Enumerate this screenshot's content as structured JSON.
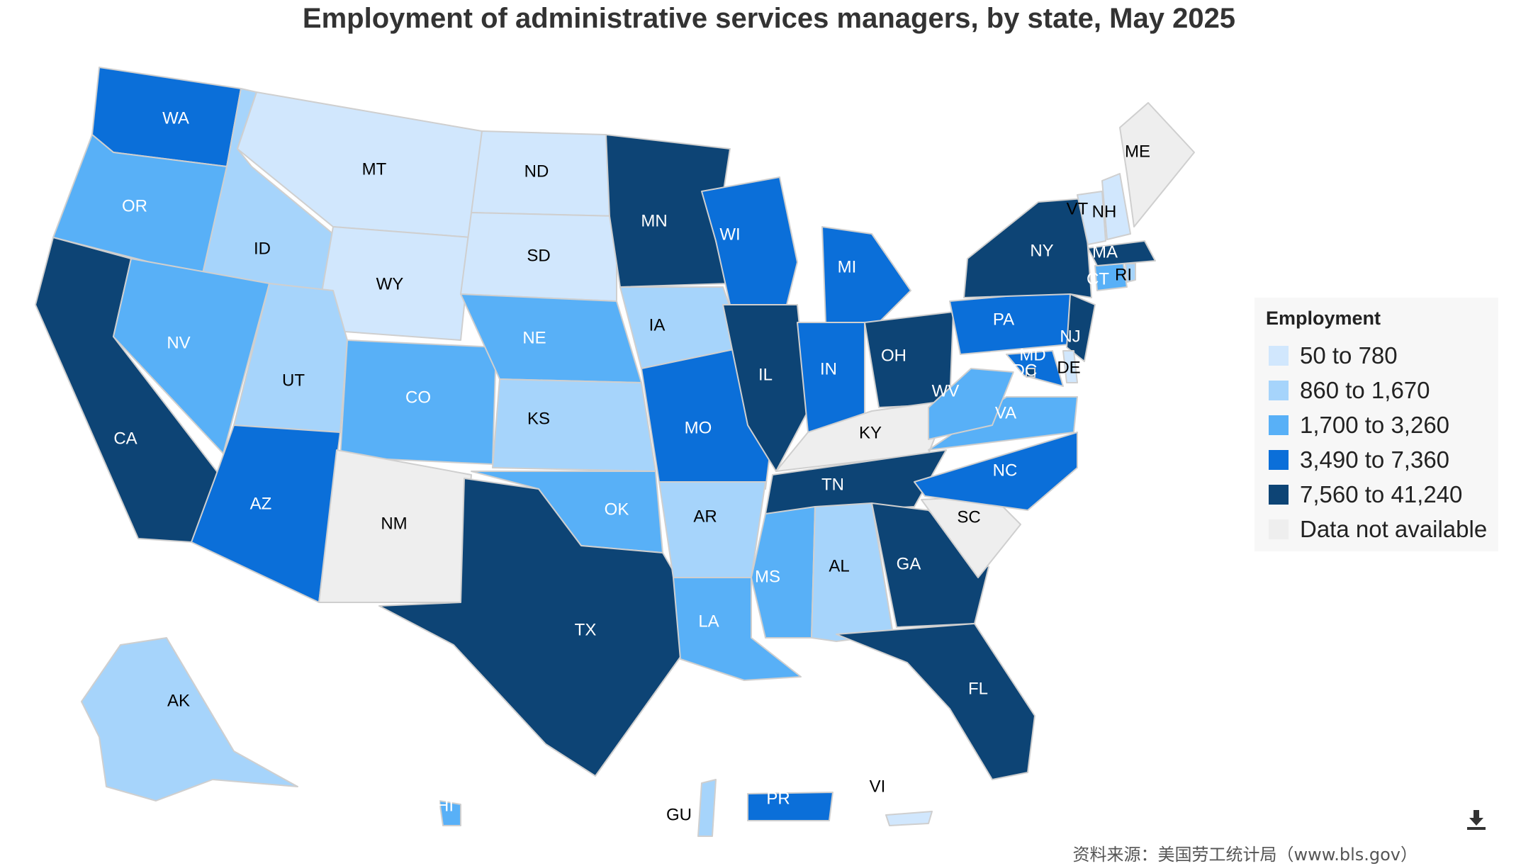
{
  "title": "Employment of administrative services managers, by state, May 2025",
  "source": "资料来源：美国劳工统计局（www.bls.gov）",
  "legend": {
    "title": "Employment",
    "items": [
      {
        "label": "50 to 780",
        "color": "#d1e7fd",
        "text_color": "#000000"
      },
      {
        "label": "860 to 1,670",
        "color": "#a6d4fb",
        "text_color": "#000000"
      },
      {
        "label": "1,700 to 3,260",
        "color": "#58b0f7",
        "text_color": "#ffffff"
      },
      {
        "label": "3,490 to 7,360",
        "color": "#0b6fd9",
        "text_color": "#ffffff"
      },
      {
        "label": "7,560 to 41,240",
        "color": "#0d4475",
        "text_color": "#ffffff"
      },
      {
        "label": "Data not available",
        "color": "#eeeeee",
        "text_color": "#000000"
      }
    ]
  },
  "states": [
    {
      "code": "WA",
      "bin": 3
    },
    {
      "code": "OR",
      "bin": 2
    },
    {
      "code": "CA",
      "bin": 4
    },
    {
      "code": "ID",
      "bin": 1
    },
    {
      "code": "NV",
      "bin": 2
    },
    {
      "code": "MT",
      "bin": 0
    },
    {
      "code": "WY",
      "bin": 0
    },
    {
      "code": "UT",
      "bin": 1
    },
    {
      "code": "AZ",
      "bin": 3
    },
    {
      "code": "CO",
      "bin": 2
    },
    {
      "code": "NM",
      "bin": 5
    },
    {
      "code": "ND",
      "bin": 0
    },
    {
      "code": "SD",
      "bin": 0
    },
    {
      "code": "NE",
      "bin": 2
    },
    {
      "code": "KS",
      "bin": 1
    },
    {
      "code": "OK",
      "bin": 2
    },
    {
      "code": "TX",
      "bin": 4
    },
    {
      "code": "MN",
      "bin": 4
    },
    {
      "code": "IA",
      "bin": 1
    },
    {
      "code": "MO",
      "bin": 3
    },
    {
      "code": "AR",
      "bin": 1
    },
    {
      "code": "LA",
      "bin": 2
    },
    {
      "code": "WI",
      "bin": 3
    },
    {
      "code": "IL",
      "bin": 4
    },
    {
      "code": "MI",
      "bin": 3
    },
    {
      "code": "IN",
      "bin": 3
    },
    {
      "code": "OH",
      "bin": 4
    },
    {
      "code": "KY",
      "bin": 5
    },
    {
      "code": "TN",
      "bin": 4
    },
    {
      "code": "MS",
      "bin": 2
    },
    {
      "code": "AL",
      "bin": 1
    },
    {
      "code": "GA",
      "bin": 4
    },
    {
      "code": "FL",
      "bin": 4
    },
    {
      "code": "SC",
      "bin": 5
    },
    {
      "code": "NC",
      "bin": 3
    },
    {
      "code": "VA",
      "bin": 2
    },
    {
      "code": "WV",
      "bin": 2
    },
    {
      "code": "PA",
      "bin": 3
    },
    {
      "code": "NY",
      "bin": 4
    },
    {
      "code": "NJ",
      "bin": 4
    },
    {
      "code": "MD",
      "bin": 3
    },
    {
      "code": "DE",
      "bin": 0
    },
    {
      "code": "DC",
      "bin": 4
    },
    {
      "code": "CT",
      "bin": 2
    },
    {
      "code": "RI",
      "bin": 1
    },
    {
      "code": "MA",
      "bin": 4
    },
    {
      "code": "VT",
      "bin": 0
    },
    {
      "code": "NH",
      "bin": 0
    },
    {
      "code": "ME",
      "bin": 5
    },
    {
      "code": "AK",
      "bin": 1
    },
    {
      "code": "HI",
      "bin": 2
    },
    {
      "code": "PR",
      "bin": 3
    },
    {
      "code": "GU",
      "bin": 1
    },
    {
      "code": "VI",
      "bin": 0
    }
  ]
}
